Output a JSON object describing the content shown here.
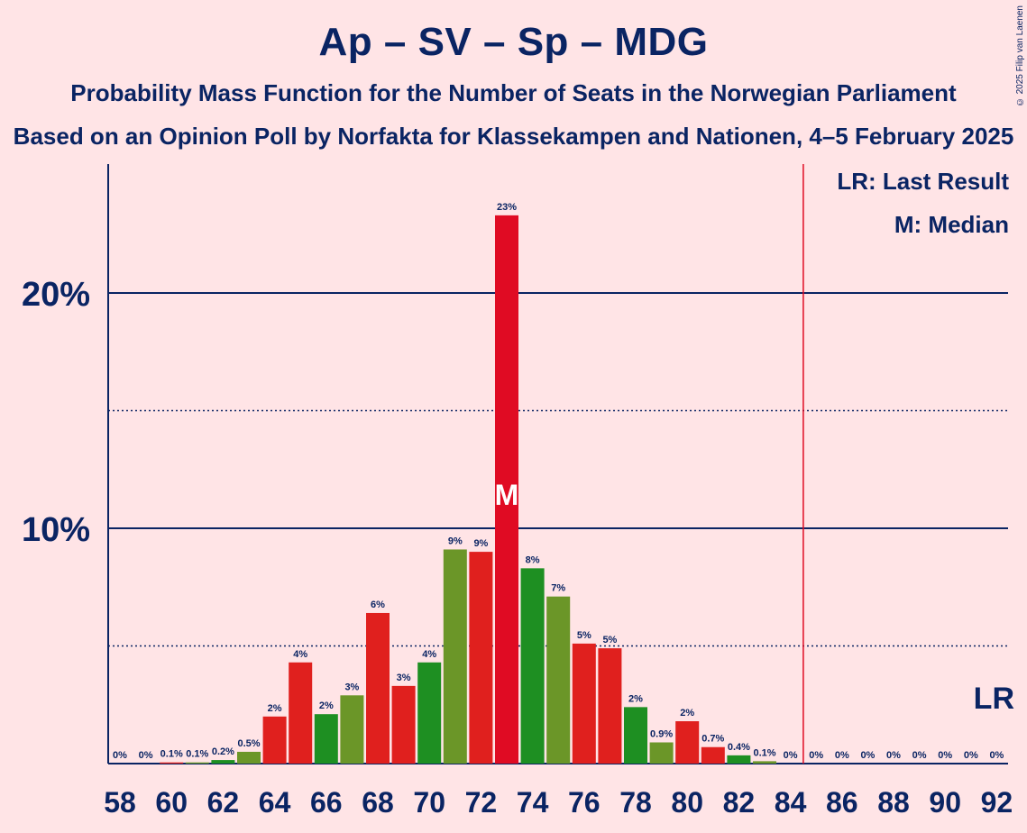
{
  "header": {
    "title": "Ap – SV – Sp – MDG",
    "subtitle": "Probability Mass Function for the Number of Seats in the Norwegian Parliament",
    "subtitle2": "Based on an Opinion Poll by Norfakta for Klassekampen and Nationen, 4–5 February 2025",
    "copyright": "© 2025 Filip van Laenen"
  },
  "legend": {
    "last_result": "LR: Last Result",
    "median": "M: Median"
  },
  "colors": {
    "background": "#FFE4E6",
    "text": "#0A2463",
    "red": "#E0201E",
    "red_bright": "#E00B23",
    "green": "#6B9628",
    "green_dark": "#1E8F22",
    "lr_line": "#E00B23"
  },
  "chart_data": {
    "type": "bar",
    "title": "Ap – SV – Sp – MDG",
    "xlabel": "",
    "ylabel": "",
    "ylim": [
      0,
      25
    ],
    "y_ticks": [
      {
        "value": 10,
        "label": "10%"
      },
      {
        "value": 20,
        "label": "20%"
      }
    ],
    "x_tick_labels": [
      "58",
      "60",
      "62",
      "64",
      "66",
      "68",
      "70",
      "72",
      "74",
      "76",
      "78",
      "80",
      "82",
      "84",
      "86",
      "88",
      "90",
      "92"
    ],
    "seats": [
      58,
      59,
      60,
      61,
      62,
      63,
      64,
      65,
      66,
      67,
      68,
      69,
      70,
      71,
      72,
      73,
      74,
      75,
      76,
      77,
      78,
      79,
      80,
      81,
      82,
      83,
      84,
      85,
      86,
      87,
      88,
      89,
      90,
      91,
      92
    ],
    "values": [
      0,
      0,
      0.05,
      0.05,
      0.15,
      0.5,
      2.0,
      4.3,
      2.1,
      2.9,
      6.4,
      3.3,
      4.3,
      9.1,
      9.0,
      23.3,
      8.3,
      7.1,
      5.1,
      4.9,
      2.4,
      0.9,
      1.8,
      0.7,
      0.35,
      0.1,
      0,
      0,
      0,
      0,
      0,
      0,
      0,
      0,
      0
    ],
    "labels": [
      "0%",
      "0%",
      "0.1%",
      "0.1%",
      "0.2%",
      "0.5%",
      "2%",
      "4%",
      "2%",
      "3%",
      "6%",
      "3%",
      "4%",
      "9%",
      "9%",
      "23%",
      "8%",
      "7%",
      "5%",
      "5%",
      "2%",
      "0.9%",
      "2%",
      "0.7%",
      "0.4%",
      "0.1%",
      "0%",
      "0%",
      "0%",
      "0%",
      "0%",
      "0%",
      "0%",
      "0%",
      "0%"
    ],
    "bar_colors": [
      "#E0201E",
      "#6B9628",
      "#E0201E",
      "#6B9628",
      "#1E8F22",
      "#6B9628",
      "#E0201E",
      "#E0201E",
      "#1E8F22",
      "#6B9628",
      "#E0201E",
      "#E0201E",
      "#1E8F22",
      "#6B9628",
      "#E0201E",
      "#E00B23",
      "#1E8F22",
      "#6B9628",
      "#E0201E",
      "#E0201E",
      "#1E8F22",
      "#6B9628",
      "#E0201E",
      "#E0201E",
      "#1E8F22",
      "#6B9628",
      "#E0201E",
      "#E0201E",
      "#1E8F22",
      "#6B9628",
      "#E0201E",
      "#E0201E",
      "#1E8F22",
      "#6B9628",
      "#E0201E"
    ],
    "median_seat": 73,
    "median_marker": "M",
    "last_result_seat": 84.5,
    "last_result_marker": "LR",
    "grid": true
  }
}
